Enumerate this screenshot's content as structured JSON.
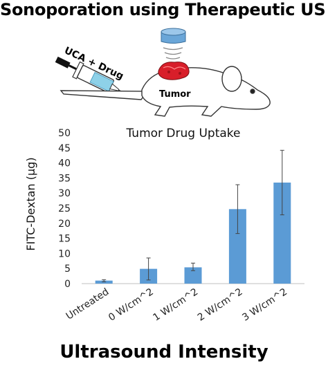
{
  "headline": "Sonoporation using Therapeutic US",
  "illustration": {
    "syringe_label": "UCA + Drug",
    "tumor_label": "Tumor"
  },
  "chart_data": {
    "type": "bar",
    "title": "Tumor Drug Uptake",
    "xlabel": "Ultrasound Intensity",
    "ylabel": "FITC-Dextan (μg)",
    "categories": [
      "Untreated",
      "0 W/cm^2",
      "1 W/cm^2",
      "2 W/cm^2",
      "3 W/cm^2"
    ],
    "values": [
      1.0,
      4.9,
      5.4,
      24.7,
      33.5
    ],
    "error_low": [
      0.6,
      1.2,
      4.3,
      16.6,
      22.8
    ],
    "error_high": [
      1.3,
      8.5,
      6.8,
      32.8,
      44.2
    ],
    "ylim": [
      0,
      50
    ],
    "yticks": [
      0,
      5,
      10,
      15,
      20,
      25,
      30,
      35,
      40,
      45,
      50
    ],
    "grid": false,
    "bar_color": "#5b9bd5"
  }
}
